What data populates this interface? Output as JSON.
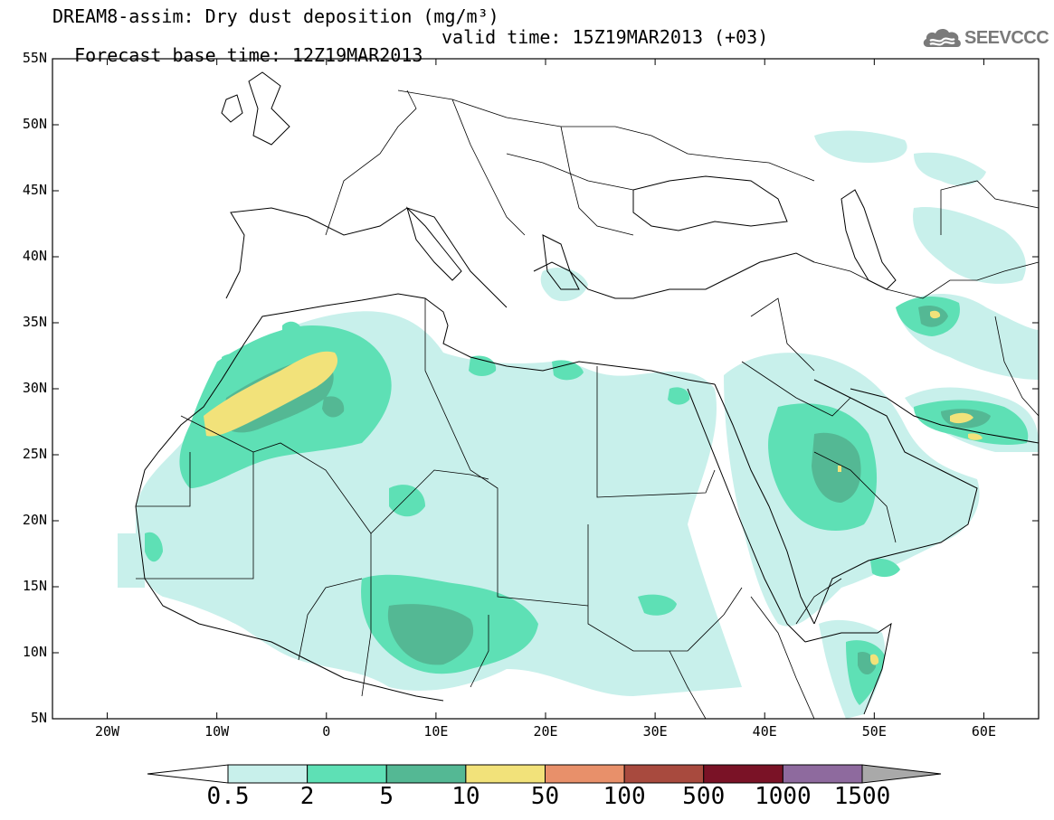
{
  "title": {
    "line1": "DREAM8-assim: Dry dust deposition (mg/m³)",
    "line2_base": "Forecast base time: 12Z19MAR2013",
    "line2_valid": "valid time: 15Z19MAR2013 (+03)"
  },
  "logo": {
    "text": "SEEVCCC",
    "icon": "cloud-logo-icon",
    "color": "#7a7a7a"
  },
  "map": {
    "projection": "lat-lon",
    "lon_range": [
      -25,
      65
    ],
    "lat_range": [
      5,
      55
    ],
    "lat_ticks": [
      {
        "value": 55,
        "label": "55N"
      },
      {
        "value": 50,
        "label": "50N"
      },
      {
        "value": 45,
        "label": "45N"
      },
      {
        "value": 40,
        "label": "40N"
      },
      {
        "value": 35,
        "label": "35N"
      },
      {
        "value": 30,
        "label": "30N"
      },
      {
        "value": 25,
        "label": "25N"
      },
      {
        "value": 20,
        "label": "20N"
      },
      {
        "value": 15,
        "label": "15N"
      },
      {
        "value": 10,
        "label": "10N"
      },
      {
        "value": 5,
        "label": "5N"
      }
    ],
    "lon_ticks": [
      {
        "value": -20,
        "label": "20W"
      },
      {
        "value": -10,
        "label": "10W"
      },
      {
        "value": 0,
        "label": "0"
      },
      {
        "value": 10,
        "label": "10E"
      },
      {
        "value": 20,
        "label": "20E"
      },
      {
        "value": 30,
        "label": "30E"
      },
      {
        "value": 40,
        "label": "40E"
      },
      {
        "value": 50,
        "label": "50E"
      },
      {
        "value": 60,
        "label": "60E"
      }
    ]
  },
  "colorbar": {
    "levels": [
      "0.5",
      "2",
      "5",
      "10",
      "50",
      "100",
      "500",
      "1000",
      "1500"
    ],
    "colors": [
      "#c8f0eb",
      "#5ee0b5",
      "#54b894",
      "#f2e27a",
      "#e8906a",
      "#a84a3e",
      "#7a1226",
      "#8e6a9e"
    ],
    "under_color": "#ffffff",
    "over_color": "#a9a9a9"
  }
}
